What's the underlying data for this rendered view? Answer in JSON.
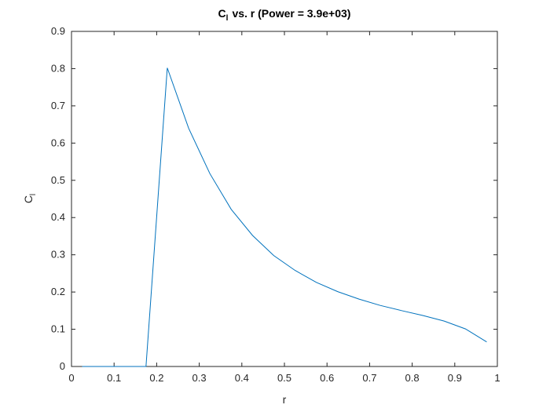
{
  "chart_data": {
    "type": "line",
    "title": "vs. r (Power = 3.9e+03)",
    "title_symbol": "C",
    "title_subscript": "l",
    "xlabel": "r",
    "ylabel": "C",
    "ylabel_subscript": "l",
    "xlim": [
      0,
      1
    ],
    "ylim": [
      0,
      0.9
    ],
    "x_ticks": [
      "0",
      "0.1",
      "0.2",
      "0.3",
      "0.4",
      "0.5",
      "0.6",
      "0.7",
      "0.8",
      "0.9",
      "1"
    ],
    "y_ticks": [
      "0",
      "0.1",
      "0.2",
      "0.3",
      "0.4",
      "0.5",
      "0.6",
      "0.7",
      "0.8",
      "0.9"
    ],
    "grid": false,
    "line_color": "#0072BD",
    "series": [
      {
        "x": [
          0.025,
          0.075,
          0.125,
          0.175,
          0.225,
          0.275,
          0.325,
          0.375,
          0.425,
          0.475,
          0.525,
          0.575,
          0.625,
          0.675,
          0.725,
          0.775,
          0.825,
          0.875,
          0.925,
          0.975
        ],
        "y": [
          0,
          0,
          0,
          0,
          0.802,
          0.64,
          0.518,
          0.422,
          0.352,
          0.298,
          0.258,
          0.226,
          0.201,
          0.181,
          0.164,
          0.15,
          0.137,
          0.122,
          0.101,
          0.066
        ]
      }
    ]
  }
}
